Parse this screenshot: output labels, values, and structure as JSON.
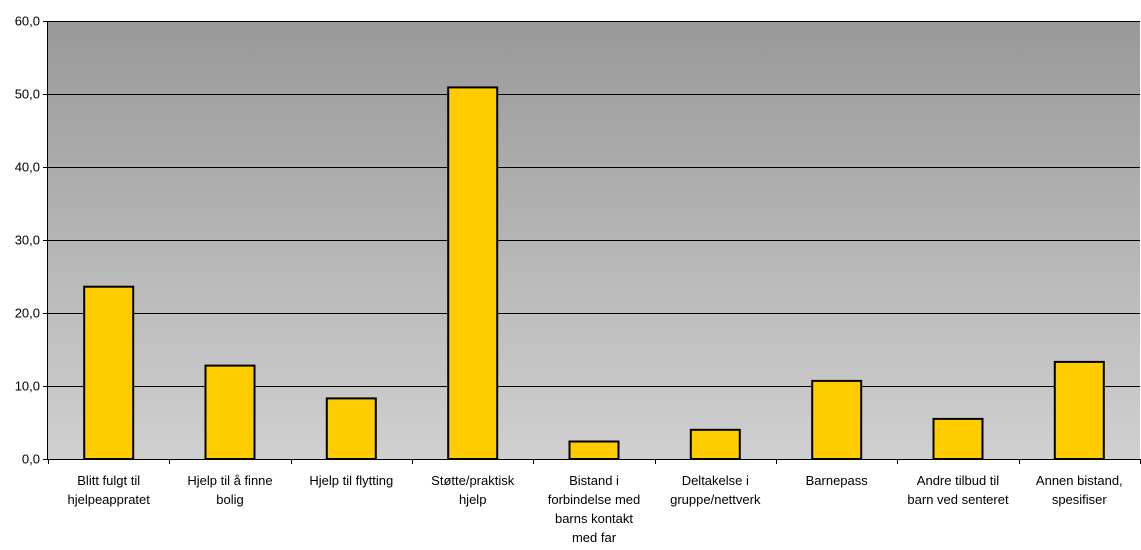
{
  "chart_data": {
    "type": "bar",
    "categories": [
      "Blitt fulgt til hjelpeappratet",
      "Hjelp til å finne bolig",
      "Hjelp til flytting",
      "Støtte/praktisk hjelp",
      "Bistand i forbindelse med barns kontakt med far",
      "Deltakelse i gruppe/nettverk",
      "Barnepass",
      "Andre tilbud til barn ved senteret",
      "Annen bistand, spesifiser"
    ],
    "category_label_lines": [
      [
        "Blitt fulgt til",
        "hjelpeappratet"
      ],
      [
        "Hjelp til å finne",
        "bolig"
      ],
      [
        "Hjelp til flytting"
      ],
      [
        "Støtte/praktisk",
        "hjelp"
      ],
      [
        "Bistand i",
        "forbindelse med",
        "barns kontakt",
        "med far"
      ],
      [
        "Deltakelse i",
        "gruppe/nettverk"
      ],
      [
        "Barnepass"
      ],
      [
        "Andre tilbud til",
        "barn ved senteret"
      ],
      [
        "Annen bistand,",
        "spesifiser"
      ]
    ],
    "values": [
      23.6,
      12.8,
      8.3,
      50.9,
      2.4,
      4.0,
      10.7,
      5.5,
      13.3
    ],
    "ylim": [
      0,
      60
    ],
    "yticks": [
      0,
      10,
      20,
      30,
      40,
      50,
      60
    ],
    "ytick_labels": [
      "0,0",
      "10,0",
      "20,0",
      "30,0",
      "40,0",
      "50,0",
      "60,0"
    ],
    "title": "",
    "xlabel": "",
    "ylabel": "",
    "grid": true,
    "legend": "none",
    "colors": {
      "bar_fill": "#FFCC00",
      "bar_stroke": "#000000",
      "plot_bg_top": "#999999",
      "plot_bg_bottom": "#D0D0D0",
      "gridline": "#000000"
    }
  }
}
